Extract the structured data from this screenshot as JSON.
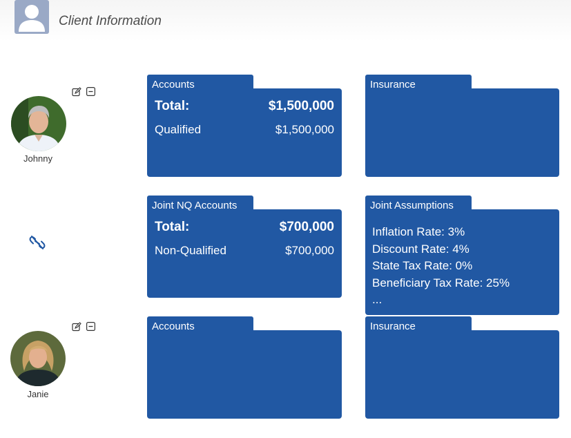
{
  "header": {
    "title": "Client Information",
    "icon": "user-icon"
  },
  "clients": [
    {
      "name": "Johnny",
      "edit_icon": "edit-icon",
      "collapse_icon": "minus-square-icon"
    },
    {
      "name": "Janie",
      "edit_icon": "edit-icon",
      "collapse_icon": "minus-square-icon"
    }
  ],
  "link_icon": "unlink-icon",
  "johnny_accounts": {
    "title": "Accounts",
    "total_label": "Total:",
    "total_value": "$1,500,000",
    "items": [
      {
        "label": "Qualified",
        "value": "$1,500,000"
      }
    ]
  },
  "johnny_insurance": {
    "title": "Insurance"
  },
  "joint_accounts": {
    "title": "Joint NQ Accounts",
    "total_label": "Total:",
    "total_value": "$700,000",
    "items": [
      {
        "label": "Non-Qualified",
        "value": "$700,000"
      }
    ]
  },
  "joint_assumptions": {
    "title": "Joint Assumptions",
    "lines": [
      "Inflation Rate: 3%",
      "Discount Rate: 4%",
      "State Tax Rate: 0%",
      "Beneficiary Tax Rate: 25%",
      "..."
    ]
  },
  "janie_accounts": {
    "title": "Accounts"
  },
  "janie_insurance": {
    "title": "Insurance"
  },
  "colors": {
    "card_blue": "#2158a3",
    "header_icon_bg": "#9aa9c6",
    "title_gray": "#4c4c4c"
  }
}
